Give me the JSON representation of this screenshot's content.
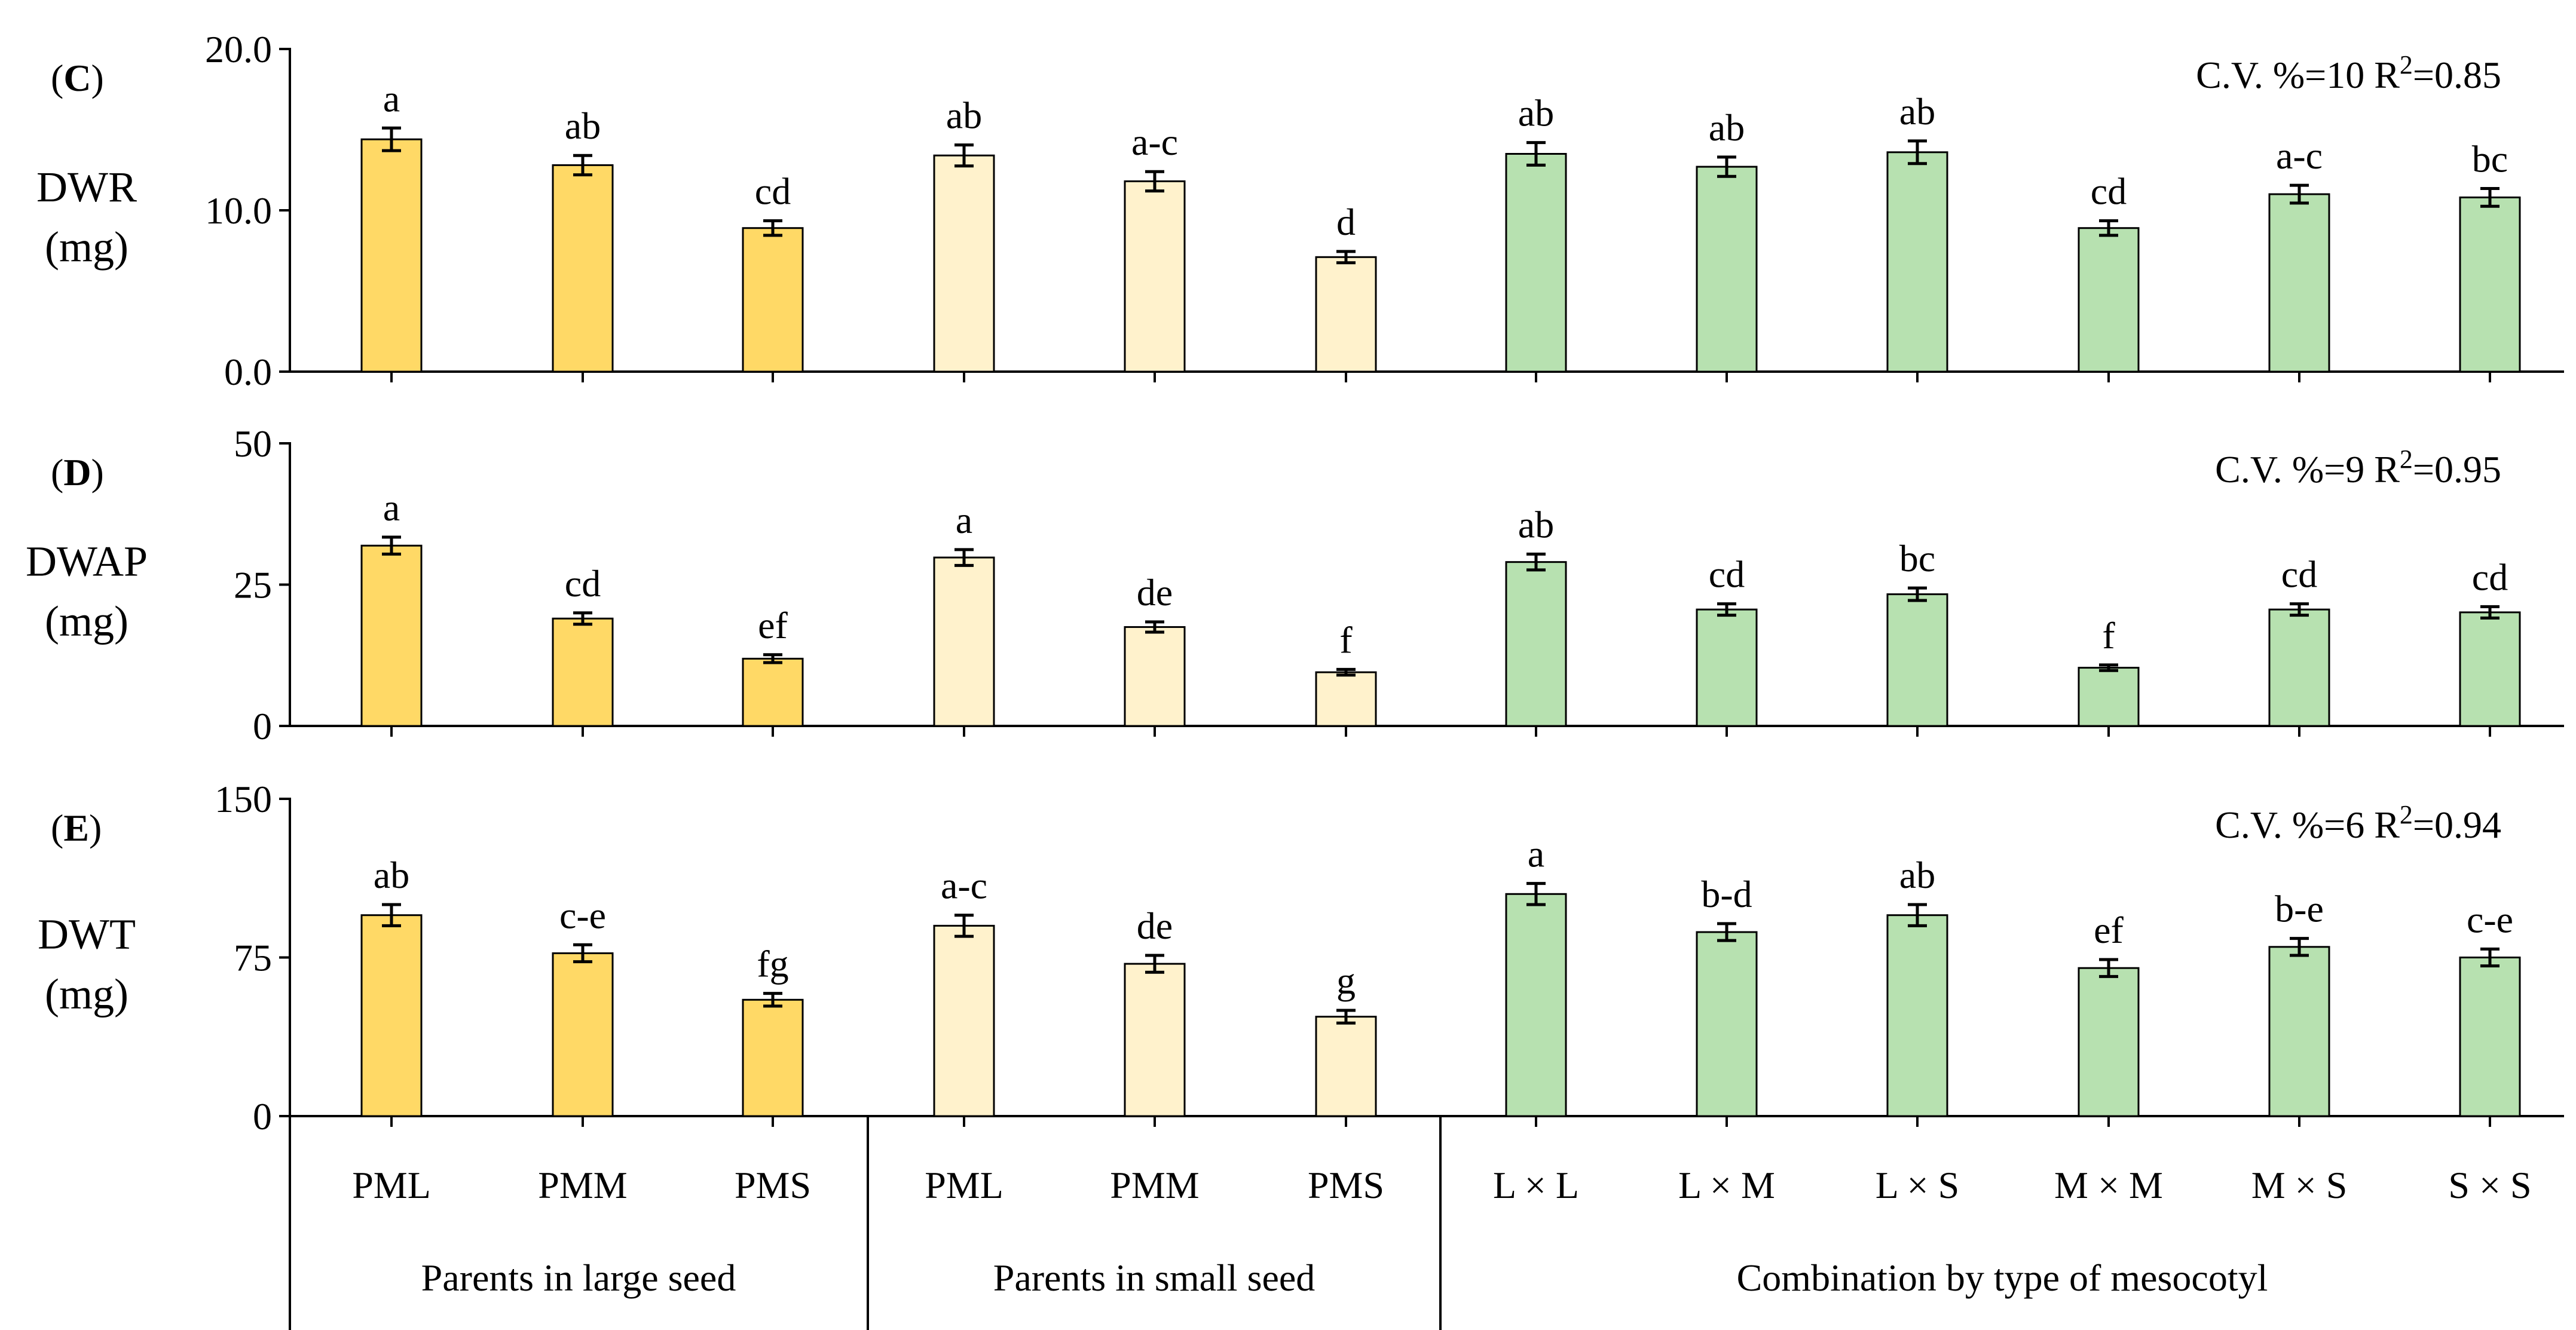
{
  "chart_data": [
    {
      "type": "bar",
      "panel_label": "C",
      "ylabel_lines": [
        "DWR",
        "(mg)"
      ],
      "ylim": [
        0,
        20
      ],
      "yticks": [
        "0.0",
        "10.0",
        "20.0"
      ],
      "ytick_values": [
        0,
        10,
        20
      ],
      "stats": {
        "cv": "C.V. %=10",
        "r2_prefix": "R",
        "r2_sup": "2",
        "r2_value": "=0.85"
      },
      "values": [
        14.4,
        12.8,
        8.9,
        13.4,
        11.8,
        7.1,
        13.5,
        12.7,
        13.6,
        8.9,
        11.0,
        10.8
      ],
      "errors": [
        0.7,
        0.6,
        0.45,
        0.65,
        0.6,
        0.35,
        0.7,
        0.6,
        0.7,
        0.45,
        0.55,
        0.55
      ],
      "letters": [
        "a",
        "ab",
        "cd",
        "ab",
        "a-c",
        "d",
        "ab",
        "ab",
        "ab",
        "cd",
        "a-c",
        "bc"
      ]
    },
    {
      "type": "bar",
      "panel_label": "D",
      "ylabel_lines": [
        "DWAP",
        "(mg)"
      ],
      "ylim": [
        0,
        50
      ],
      "yticks": [
        "0",
        "25",
        "50"
      ],
      "ytick_values": [
        0,
        25,
        50
      ],
      "stats": {
        "cv": "C.V. %=9",
        "r2_prefix": "R",
        "r2_sup": "2",
        "r2_value": "=0.95"
      },
      "values": [
        31.9,
        19.0,
        11.9,
        29.8,
        17.5,
        9.5,
        29.0,
        20.6,
        23.3,
        10.3,
        20.6,
        20.1
      ],
      "errors": [
        1.5,
        1.0,
        0.7,
        1.4,
        0.9,
        0.5,
        1.4,
        1.0,
        1.1,
        0.5,
        1.0,
        1.0
      ],
      "letters": [
        "a",
        "cd",
        "ef",
        "a",
        "de",
        "f",
        "ab",
        "cd",
        "bc",
        "f",
        "cd",
        "cd"
      ]
    },
    {
      "type": "bar",
      "panel_label": "E",
      "ylabel_lines": [
        "DWT",
        "(mg)"
      ],
      "ylim": [
        0,
        150
      ],
      "yticks": [
        "0",
        "75",
        "150"
      ],
      "ytick_values": [
        0,
        75,
        150
      ],
      "stats": {
        "cv": "C.V. %=6",
        "r2_prefix": "R",
        "r2_sup": "2",
        "r2_value": "=0.94"
      },
      "values": [
        95,
        77,
        55,
        90,
        72,
        47,
        105,
        87,
        95,
        70,
        80,
        75
      ],
      "errors": [
        5,
        4,
        3,
        5,
        4,
        3,
        5,
        4,
        5,
        4,
        4,
        4
      ],
      "letters": [
        "ab",
        "c-e",
        "fg",
        "a-c",
        "de",
        "g",
        "a",
        "b-d",
        "ab",
        "ef",
        "b-e",
        "c-e"
      ]
    }
  ],
  "categories": [
    "PML",
    "PMM",
    "PMS",
    "PML",
    "PMM",
    "PMS",
    "L × L",
    "L × M",
    "L × S",
    "M × M",
    "M × S",
    "S × S"
  ],
  "groups": [
    {
      "label": "Parents in large seed",
      "start": 0,
      "end": 2,
      "color": "#FFD966"
    },
    {
      "label": "Parents in small seed",
      "start": 3,
      "end": 5,
      "color": "#FFF2CC"
    },
    {
      "label": "Combination by type of mesocotyl",
      "start": 6,
      "end": 11,
      "color": "#B7E1B0"
    }
  ]
}
